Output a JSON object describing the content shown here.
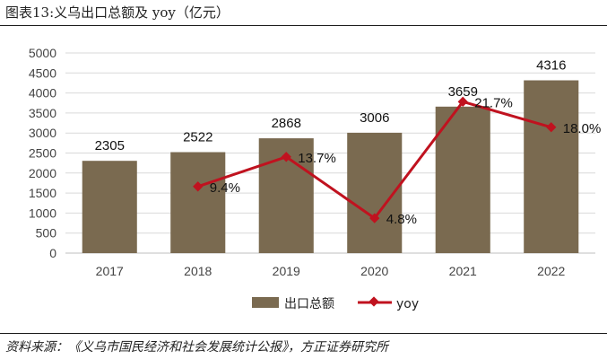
{
  "header": {
    "title": "图表13:义乌出口总额及 yoy（亿元）"
  },
  "footer": {
    "source": "资料来源：《义乌市国民经济和社会发展统计公报》，方正证券研究所"
  },
  "colors": {
    "bar": "#7a6a50",
    "line": "#c0121f",
    "grid": "#d9d9d9"
  },
  "chart_data": {
    "type": "bar",
    "categories": [
      "2017",
      "2018",
      "2019",
      "2020",
      "2021",
      "2022"
    ],
    "ylim": [
      0,
      5000
    ],
    "yticks": [
      "0",
      "500",
      "1000",
      "1500",
      "2000",
      "2500",
      "3000",
      "3500",
      "4000",
      "4500",
      "5000"
    ],
    "series": [
      {
        "name": "出口总额",
        "type": "bar",
        "values": [
          2305,
          2522,
          2868,
          3006,
          3659,
          4316
        ],
        "labels": [
          "2305",
          "2522",
          "2868",
          "3006",
          "3659",
          "4316"
        ]
      },
      {
        "name": "yoy",
        "type": "line",
        "secondary_axis": true,
        "values": [
          null,
          9.4,
          13.7,
          4.8,
          21.7,
          18.0
        ],
        "labels": [
          "",
          "9.4%",
          "13.7%",
          "4.8%",
          "21.7%",
          "18.0%"
        ]
      }
    ],
    "legend": [
      "出口总额",
      "yoy"
    ],
    "legend_position": "bottom",
    "grid": true
  }
}
